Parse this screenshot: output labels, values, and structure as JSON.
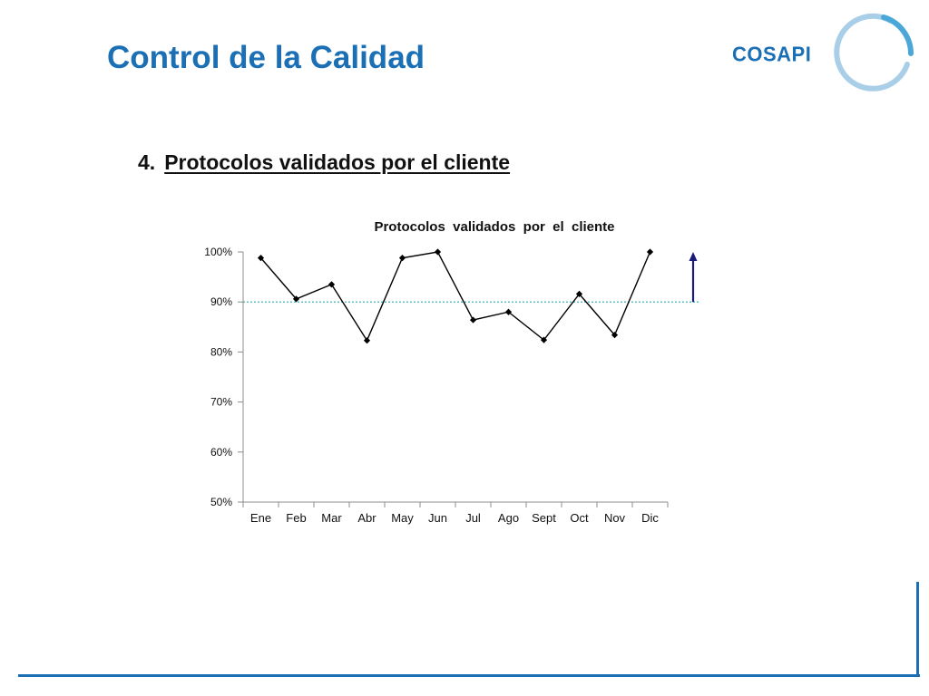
{
  "slide": {
    "title": "Control de la Calidad",
    "logo_text": "COSAPI",
    "section_number": "4.",
    "section_title": "Protocolos validados por el cliente"
  },
  "colors": {
    "title_blue": "#1b6fb5",
    "target_line": "#2aa6a6",
    "arrow": "#1a1a7a",
    "series": "#000000"
  },
  "chart_data": {
    "type": "line",
    "title": "Protocolos  validados  por  el  cliente",
    "categories": [
      "Ene",
      "Feb",
      "Mar",
      "Abr",
      "May",
      "Jun",
      "Jul",
      "Ago",
      "Sept",
      "Oct",
      "Nov",
      "Dic"
    ],
    "series": [
      {
        "name": "Protocolos validados",
        "values": [
          98.8,
          90.6,
          93.5,
          82.3,
          98.8,
          100,
          86.4,
          88.0,
          82.4,
          91.6,
          83.4,
          100
        ]
      }
    ],
    "target": 90,
    "ylim": [
      50,
      100
    ],
    "yticks": [
      50,
      60,
      70,
      80,
      90,
      100
    ],
    "ytick_labels": [
      "50%",
      "60%",
      "70%",
      "80%",
      "90%",
      "100%"
    ],
    "xlabel": "",
    "ylabel": "",
    "legend": "none",
    "annotation": "upward-arrow"
  }
}
